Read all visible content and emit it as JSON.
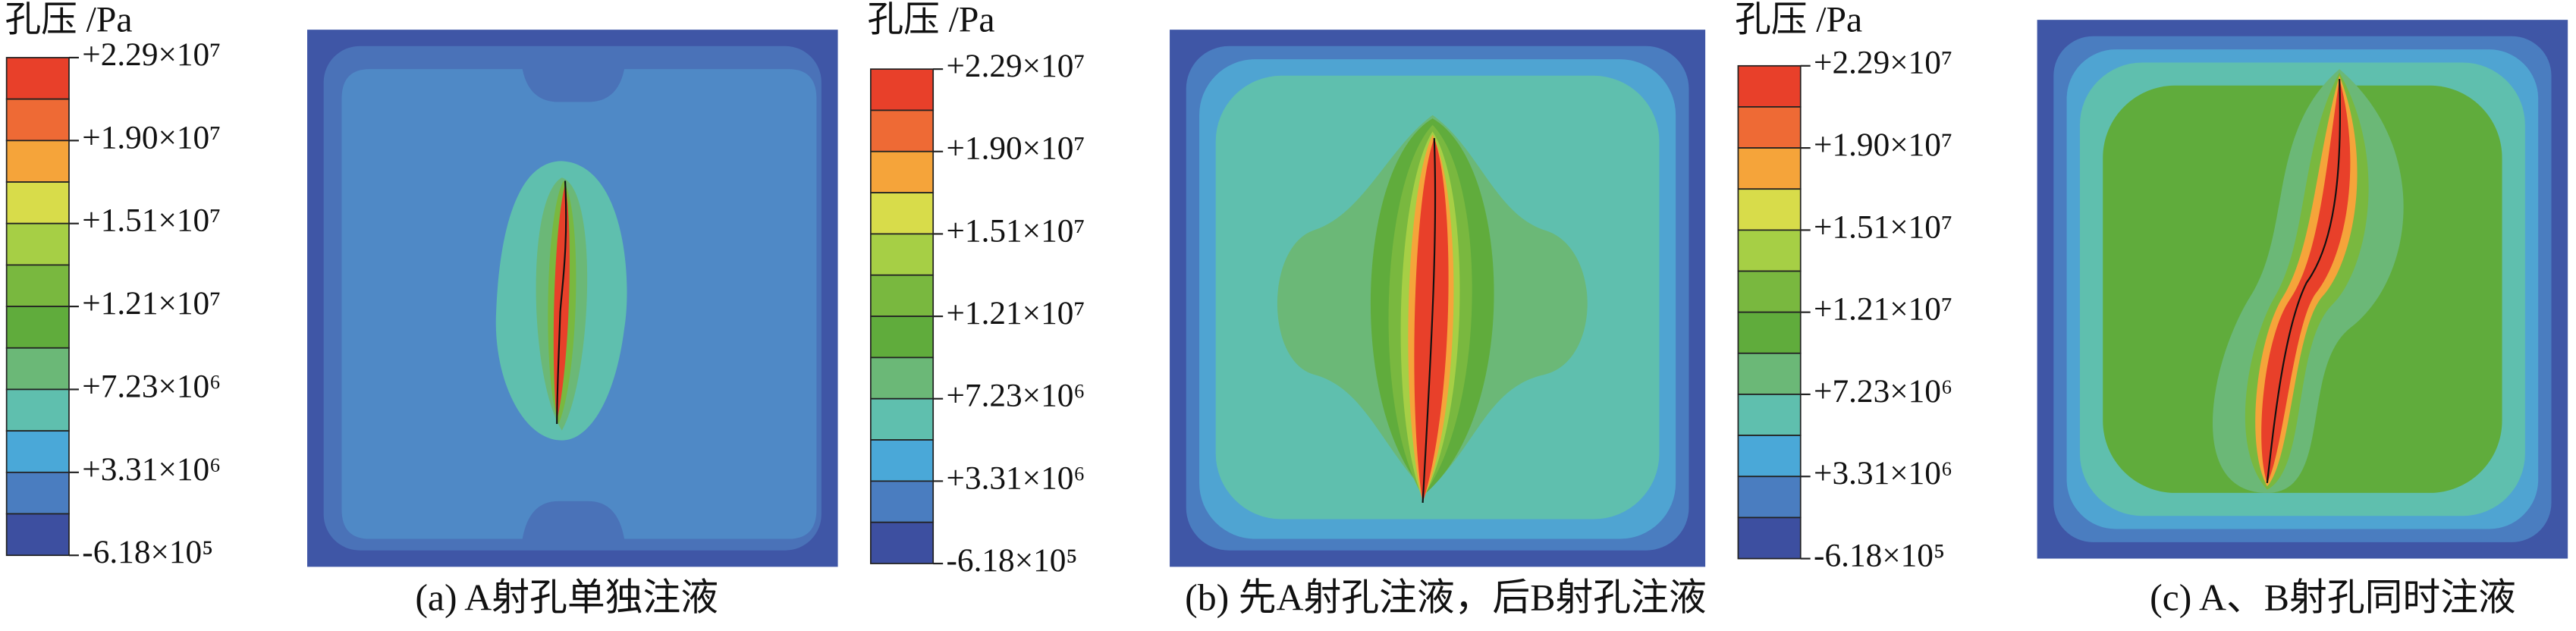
{
  "panels": [
    {
      "legend_title": "孔压 /Pa",
      "ticks": [
        "+2.29×10⁷",
        "+1.90×10⁷",
        "+1.51×10⁷",
        "+1.21×10⁷",
        "+7.23×10⁶",
        "+3.31×10⁶",
        "-6.18×10⁵"
      ],
      "caption": "(a) A射孔单独注液"
    },
    {
      "legend_title": "孔压 /Pa",
      "ticks": [
        "+2.29×10⁷",
        "+1.90×10⁷",
        "+1.51×10⁷",
        "+1.21×10⁷",
        "+7.23×10⁶",
        "+3.31×10⁶",
        "-6.18×10⁵"
      ],
      "caption": "(b) 先A射孔注液，后B射孔注液"
    },
    {
      "legend_title": "孔压 /Pa",
      "ticks": [
        "+2.29×10⁷",
        "+1.90×10⁷",
        "+1.51×10⁷",
        "+1.21×10⁷",
        "+7.23×10⁶",
        "+3.31×10⁶",
        "-6.18×10⁵"
      ],
      "caption": "(c) A、B射孔同时注液"
    }
  ]
}
